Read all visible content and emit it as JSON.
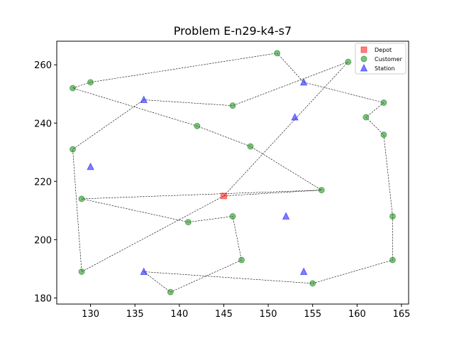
{
  "chart_data": {
    "type": "scatter",
    "title": "Problem E-n29-k4-s7",
    "xlabel": "",
    "ylabel": "",
    "xlim": [
      126.2,
      165.8
    ],
    "ylim": [
      177.9,
      268.1
    ],
    "xticks": [
      130,
      135,
      140,
      145,
      150,
      155,
      160,
      165
    ],
    "yticks": [
      180,
      200,
      220,
      240,
      260
    ],
    "grid": false,
    "legend_position": "top-right",
    "series": [
      {
        "name": "Depot",
        "marker": "square",
        "color": "#ff0000",
        "points": [
          [
            145,
            215
          ]
        ]
      },
      {
        "name": "Customer",
        "marker": "circle",
        "color": "#008000",
        "points": [
          [
            151,
            264
          ],
          [
            130,
            254
          ],
          [
            128,
            252
          ],
          [
            146,
            246
          ],
          [
            142,
            239
          ],
          [
            148,
            232
          ],
          [
            128,
            231
          ],
          [
            156,
            217
          ],
          [
            129,
            214
          ],
          [
            141,
            206
          ],
          [
            146,
            208
          ],
          [
            147,
            193
          ],
          [
            139,
            182
          ],
          [
            129,
            189
          ],
          [
            159,
            261
          ],
          [
            163,
            247
          ],
          [
            161,
            242
          ],
          [
            163,
            236
          ],
          [
            164,
            208
          ],
          [
            164,
            193
          ],
          [
            155,
            185
          ]
        ]
      },
      {
        "name": "Station",
        "marker": "triangle",
        "color": "#0000ff",
        "points": [
          [
            154,
            254
          ],
          [
            136,
            248
          ],
          [
            153,
            242
          ],
          [
            130,
            225
          ],
          [
            152,
            208
          ],
          [
            136,
            189
          ],
          [
            154,
            189
          ]
        ]
      }
    ],
    "routes": [
      [
        [
          145,
          215
        ],
        [
          156,
          217
        ],
        [
          129,
          214
        ],
        [
          141,
          206
        ],
        [
          146,
          208
        ],
        [
          147,
          193
        ],
        [
          139,
          182
        ],
        [
          136,
          189
        ],
        [
          155,
          185
        ],
        [
          164,
          193
        ],
        [
          164,
          208
        ],
        [
          163,
          236
        ],
        [
          161,
          242
        ],
        [
          163,
          247
        ],
        [
          154,
          254
        ],
        [
          151,
          264
        ],
        [
          130,
          254
        ],
        [
          128,
          252
        ],
        [
          142,
          239
        ],
        [
          148,
          232
        ],
        [
          156,
          217
        ]
      ],
      [
        [
          145,
          215
        ],
        [
          159,
          261
        ],
        [
          146,
          246
        ],
        [
          136,
          248
        ],
        [
          128,
          231
        ],
        [
          129,
          189
        ],
        [
          145,
          215
        ]
      ]
    ]
  }
}
